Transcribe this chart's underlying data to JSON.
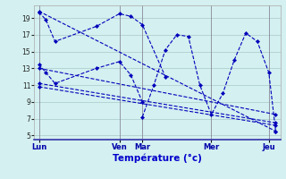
{
  "background_color": "#d4f0f0",
  "plot_bg": "#d4f0f0",
  "line_color": "#0000bb",
  "grid_color": "#a8c8c8",
  "xlabel": "Température (°c)",
  "ylim": [
    4.5,
    20.5
  ],
  "yticks": [
    5,
    7,
    9,
    11,
    13,
    15,
    17,
    19
  ],
  "xlim": [
    -0.2,
    10.5
  ],
  "day_ticks": [
    0,
    3.5,
    4.5,
    7.5,
    10.0
  ],
  "day_labels": [
    "Lun",
    "Ven",
    "Mar",
    "Mer",
    "Jeu"
  ],
  "vlines": [
    0,
    3.5,
    4.5,
    7.5,
    10.0
  ],
  "series": [
    {
      "x": [
        0.0,
        0.3,
        0.7,
        2.5,
        3.5,
        4.0,
        4.5,
        5.5
      ],
      "y": [
        19.7,
        18.8,
        16.2,
        18.0,
        19.5,
        19.2,
        18.2,
        12.0
      ]
    },
    {
      "x": [
        4.5,
        5.0,
        5.5,
        6.0,
        6.5,
        7.0,
        7.5,
        8.0,
        8.5,
        9.0,
        9.5,
        10.0,
        10.3
      ],
      "y": [
        7.2,
        11.0,
        15.2,
        17.0,
        16.8,
        11.0,
        7.5,
        10.0,
        14.0,
        17.2,
        16.2,
        12.5,
        5.5
      ]
    },
    {
      "x": [
        0.0,
        0.3,
        0.7,
        2.5,
        3.5,
        4.0,
        4.5
      ],
      "y": [
        13.5,
        12.5,
        11.2,
        13.0,
        13.8,
        12.2,
        9.0
      ]
    },
    {
      "x": [
        0.0,
        10.3
      ],
      "y": [
        19.8,
        5.5
      ]
    },
    {
      "x": [
        0.0,
        10.3
      ],
      "y": [
        13.0,
        7.5
      ]
    },
    {
      "x": [
        0.0,
        10.3
      ],
      "y": [
        11.2,
        6.5
      ]
    },
    {
      "x": [
        0.0,
        10.3
      ],
      "y": [
        10.8,
        6.2
      ]
    }
  ]
}
